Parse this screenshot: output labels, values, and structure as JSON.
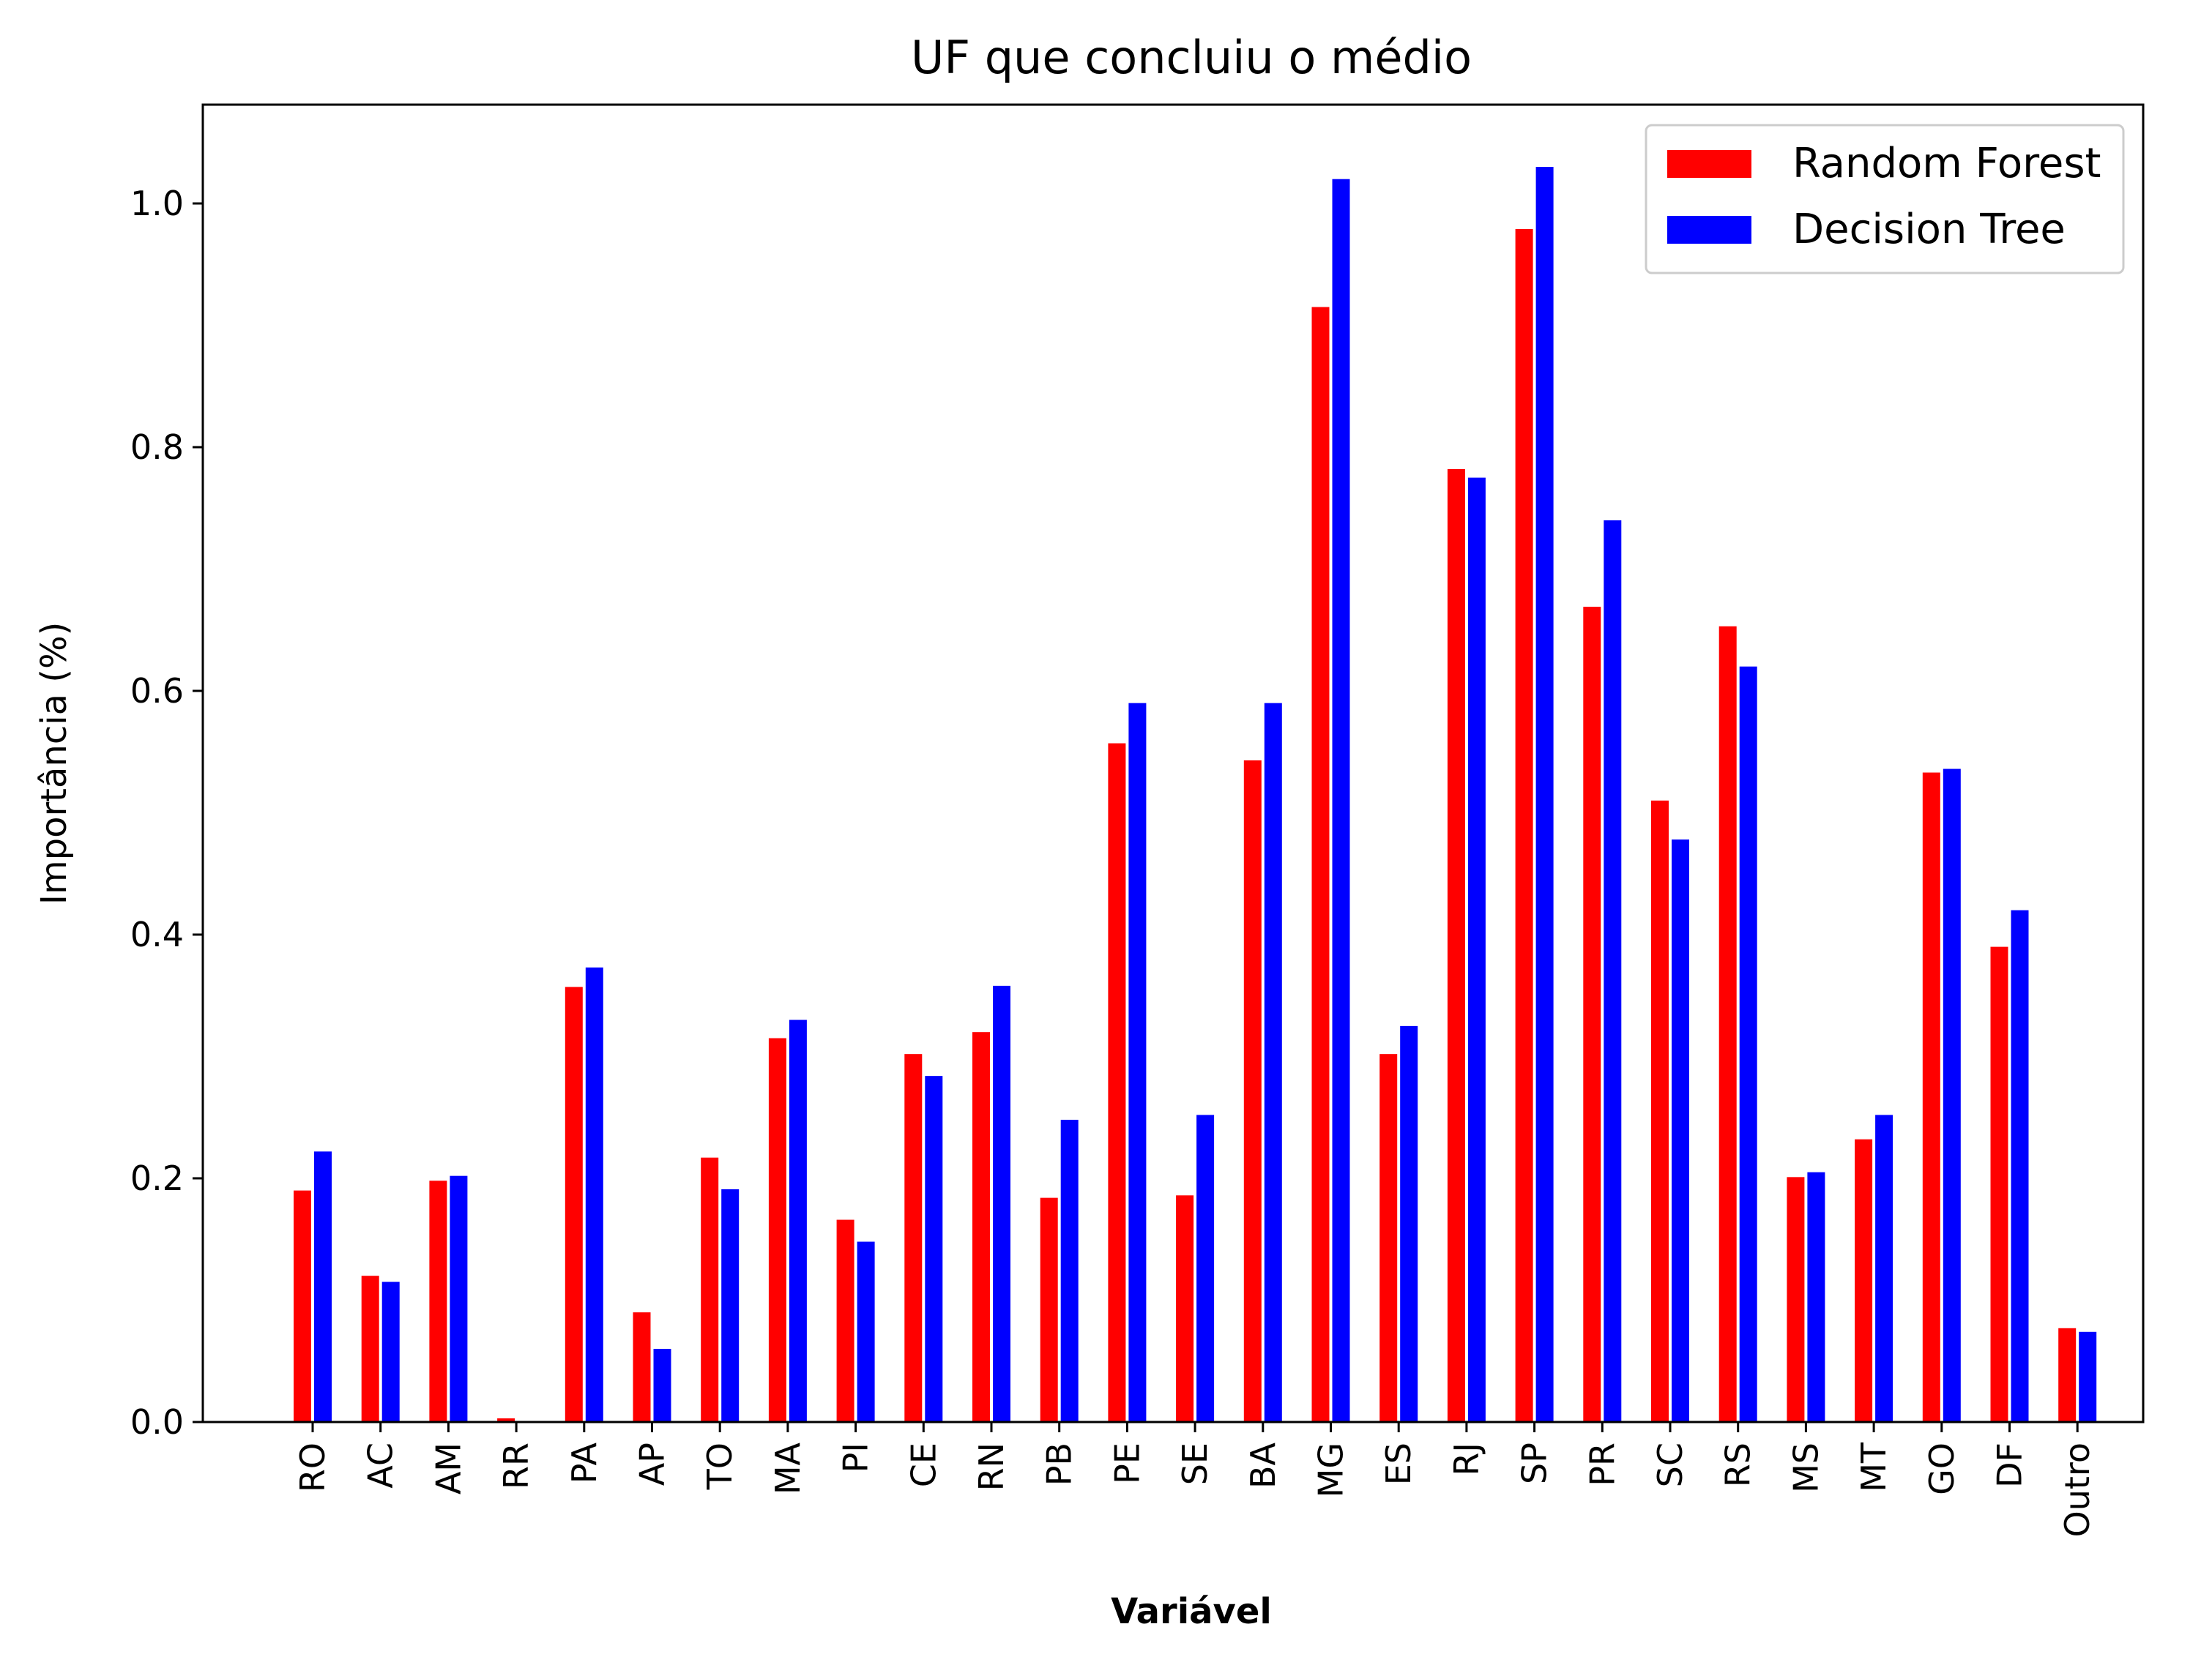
{
  "chart_data": {
    "type": "bar",
    "title": "UF que concluiu o médio",
    "xlabel": "Variável",
    "ylabel": "Importância (%)",
    "ylim": [
      0,
      1.08
    ],
    "yticks": [
      "0.0",
      "0.2",
      "0.4",
      "0.6",
      "0.8",
      "1.0"
    ],
    "categories": [
      "RO",
      "AC",
      "AM",
      "RR",
      "PA",
      "AP",
      "TO",
      "MA",
      "PI",
      "CE",
      "RN",
      "PB",
      "PE",
      "SE",
      "BA",
      "MG",
      "ES",
      "RJ",
      "SP",
      "PR",
      "SC",
      "RS",
      "MS",
      "MT",
      "GO",
      "DF",
      "Outro"
    ],
    "series": [
      {
        "name": "Random Forest",
        "color": "#ff0000",
        "values": [
          0.19,
          0.12,
          0.198,
          0.003,
          0.357,
          0.09,
          0.217,
          0.315,
          0.166,
          0.302,
          0.32,
          0.184,
          0.557,
          0.186,
          0.543,
          0.915,
          0.302,
          0.782,
          0.979,
          0.669,
          0.51,
          0.653,
          0.201,
          0.232,
          0.533,
          0.39,
          0.077
        ]
      },
      {
        "name": "Decision Tree",
        "color": "#0000ff",
        "values": [
          0.222,
          0.115,
          0.202,
          0.0,
          0.373,
          0.06,
          0.191,
          0.33,
          0.148,
          0.284,
          0.358,
          0.248,
          0.59,
          0.252,
          0.59,
          1.02,
          0.325,
          0.775,
          1.03,
          0.74,
          0.478,
          0.62,
          0.205,
          0.252,
          0.536,
          0.42,
          0.074
        ]
      }
    ],
    "legend_position": "top-right",
    "grid": false
  }
}
